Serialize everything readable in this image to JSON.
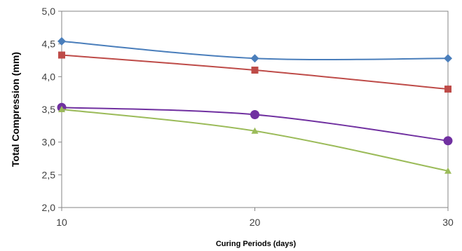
{
  "chart_data": {
    "type": "line",
    "title": "",
    "xlabel": "Curing Periods  (days)",
    "ylabel": "Total Compression (mm)",
    "x": [
      10,
      20,
      30
    ],
    "x_ticks": [
      "10",
      "20",
      "30"
    ],
    "xlim": [
      10,
      30
    ],
    "ylim": [
      2.0,
      5.0
    ],
    "y_ticks": [
      "2,0",
      "2,5",
      "3,0",
      "3,5",
      "4,0",
      "4,5",
      "5,0"
    ],
    "y_tick_values": [
      2.0,
      2.5,
      3.0,
      3.5,
      4.0,
      4.5,
      5.0
    ],
    "grid": false,
    "legend": "none",
    "series": [
      {
        "values": [
          4.54,
          4.28,
          4.28
        ],
        "color": "#4a7ebb",
        "marker": "diamond"
      },
      {
        "values": [
          4.33,
          4.1,
          3.81
        ],
        "color": "#be4b48",
        "marker": "square"
      },
      {
        "values": [
          3.53,
          3.42,
          3.02
        ],
        "color": "#7030a0",
        "marker": "circle"
      },
      {
        "values": [
          3.5,
          3.17,
          2.56
        ],
        "color": "#9bbb59",
        "marker": "triangle"
      }
    ]
  }
}
